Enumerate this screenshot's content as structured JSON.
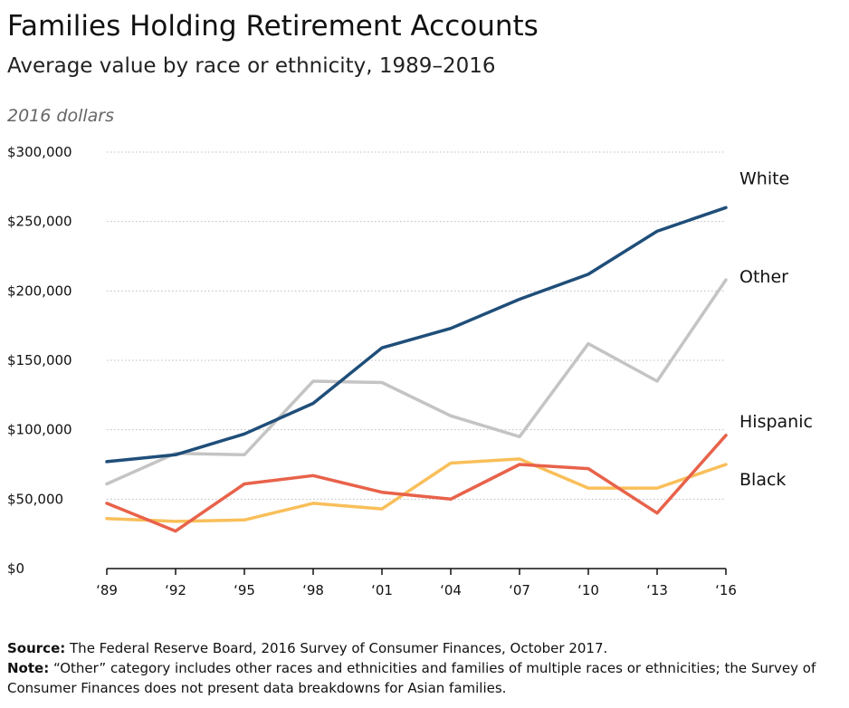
{
  "header": {
    "title": "Families Holding Retirement Accounts",
    "subtitle": "Average value by race or ethnicity, 1989–2016",
    "units": "2016 dollars"
  },
  "footnotes": {
    "source_label": "Source:",
    "source_text": " The Federal Reserve Board, 2016 Survey of Consumer Finances, October 2017.",
    "note_label": "Note:",
    "note_text": " “Other” category includes other races and ethnicities and families of multiple races or ethnicities; the Survey of Consumer Finances does not present data breakdowns for Asian families."
  },
  "chart_data": {
    "type": "line",
    "title": "Families Holding Retirement Accounts",
    "subtitle": "Average value by race or ethnicity, 1989–2016",
    "ylabel": "2016 dollars",
    "categories": [
      "‘89",
      "‘92",
      "‘95",
      "‘98",
      "‘01",
      "‘04",
      "‘07",
      "‘10",
      "‘13",
      "‘16"
    ],
    "ylim": [
      0,
      300000
    ],
    "yticks": [
      0,
      50000,
      100000,
      150000,
      200000,
      250000,
      300000
    ],
    "ytick_labels": [
      "$0",
      "$50,000",
      "$100,000",
      "$150,000",
      "$200,000",
      "$250,000",
      "$300,000"
    ],
    "grid": true,
    "legend": "direct labels at line ends",
    "series": [
      {
        "name": "White",
        "color": "#1f4e79",
        "values": [
          77000,
          82000,
          97000,
          119000,
          159000,
          173000,
          194000,
          212000,
          243000,
          260000
        ]
      },
      {
        "name": "Other",
        "color": "#c4c4c4",
        "values": [
          61000,
          83000,
          82000,
          135000,
          134000,
          110000,
          95000,
          162000,
          135000,
          208000
        ]
      },
      {
        "name": "Hispanic",
        "color": "#e8624a",
        "values": [
          47000,
          27000,
          61000,
          67000,
          55000,
          50000,
          75000,
          72000,
          40000,
          96000
        ]
      },
      {
        "name": "Black",
        "color": "#f9bf5a",
        "values": [
          36000,
          34000,
          35000,
          47000,
          43000,
          76000,
          79000,
          58000,
          58000,
          75000
        ]
      }
    ]
  }
}
